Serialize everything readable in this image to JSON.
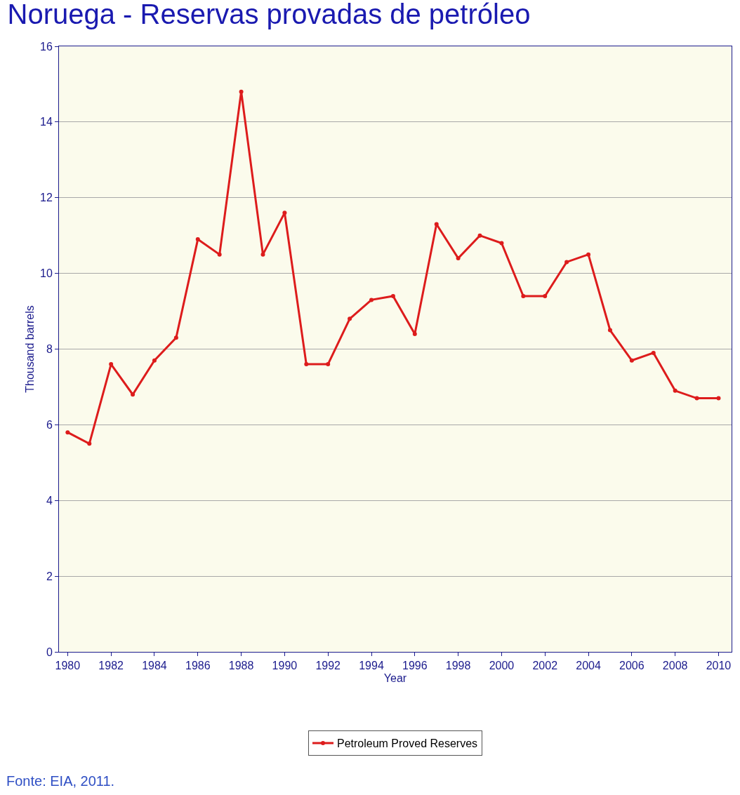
{
  "chart_data": {
    "type": "line",
    "title": "Noruega - Reservas provadas de petróleo",
    "xlabel": "Year",
    "ylabel": "Thousand barrels",
    "x": [
      1980,
      1981,
      1982,
      1983,
      1984,
      1985,
      1986,
      1987,
      1988,
      1989,
      1990,
      1991,
      1992,
      1993,
      1994,
      1995,
      1996,
      1997,
      1998,
      1999,
      2000,
      2001,
      2002,
      2003,
      2004,
      2005,
      2006,
      2007,
      2008,
      2009,
      2010
    ],
    "series": [
      {
        "name": "Petroleum Proved Reserves",
        "color": "#dd1c1c",
        "values": [
          5.8,
          5.5,
          7.6,
          6.8,
          7.7,
          8.3,
          10.9,
          10.5,
          14.8,
          10.5,
          11.6,
          7.6,
          7.6,
          8.8,
          9.3,
          9.4,
          8.4,
          11.3,
          10.4,
          11.0,
          10.8,
          9.4,
          9.4,
          10.3,
          10.5,
          8.5,
          7.7,
          7.9,
          6.9,
          6.7,
          6.7
        ]
      }
    ],
    "xlim": [
      1979.6,
      2010.6
    ],
    "xticks": [
      1980,
      1982,
      1984,
      1986,
      1988,
      1990,
      1992,
      1994,
      1996,
      1998,
      2000,
      2002,
      2004,
      2006,
      2008,
      2010
    ],
    "ylim": [
      0,
      16
    ],
    "yticks": [
      0,
      2,
      4,
      6,
      8,
      10,
      12,
      14,
      16
    ],
    "grid": "y",
    "legend": "bottom",
    "marker": "circle",
    "line_style": "solid",
    "annotations": [
      "Fonte: EIA, 2011."
    ]
  }
}
